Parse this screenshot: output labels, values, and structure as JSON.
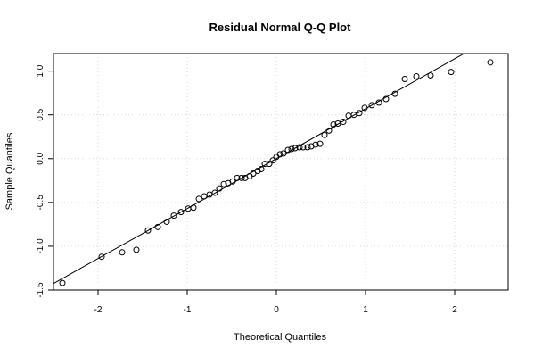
{
  "chart_data": {
    "type": "scatter",
    "title": "Residual Normal Q-Q Plot",
    "xlabel": "Theoretical Quantiles",
    "ylabel": "Sample Quantiles",
    "xlim": [
      -2.5,
      2.6
    ],
    "ylim": [
      -1.5,
      1.2
    ],
    "xticks": [
      -2,
      -1,
      0,
      1,
      2
    ],
    "yticks": [
      -1.5,
      -1.0,
      -0.5,
      0.0,
      0.5,
      1.0
    ],
    "xtick_labels": [
      "-2",
      "-1",
      "0",
      "1",
      "2"
    ],
    "ytick_labels": [
      "-1.5",
      "-1.0",
      "-0.5",
      "0.0",
      "0.5",
      "1.0"
    ],
    "grid": true,
    "reference_line": {
      "slope": 0.57,
      "intercept": -0.0
    },
    "x": [
      -2.4,
      -1.96,
      -1.73,
      -1.57,
      -1.44,
      -1.33,
      -1.23,
      -1.15,
      -1.07,
      -0.99,
      -0.93,
      -0.87,
      -0.81,
      -0.75,
      -0.69,
      -0.64,
      -0.59,
      -0.54,
      -0.49,
      -0.44,
      -0.39,
      -0.35,
      -0.3,
      -0.26,
      -0.21,
      -0.17,
      -0.13,
      -0.08,
      -0.04,
      0.0,
      0.04,
      0.08,
      0.13,
      0.17,
      0.21,
      0.26,
      0.3,
      0.35,
      0.39,
      0.44,
      0.49,
      0.54,
      0.59,
      0.64,
      0.69,
      0.75,
      0.81,
      0.87,
      0.93,
      0.99,
      1.07,
      1.15,
      1.23,
      1.33,
      1.44,
      1.57,
      1.73,
      1.96,
      2.4
    ],
    "y": [
      -1.42,
      -1.12,
      -1.07,
      -1.04,
      -0.82,
      -0.78,
      -0.72,
      -0.65,
      -0.61,
      -0.57,
      -0.56,
      -0.46,
      -0.43,
      -0.41,
      -0.39,
      -0.34,
      -0.29,
      -0.28,
      -0.26,
      -0.22,
      -0.22,
      -0.22,
      -0.2,
      -0.17,
      -0.14,
      -0.12,
      -0.06,
      -0.06,
      -0.02,
      0.02,
      0.05,
      0.06,
      0.1,
      0.11,
      0.12,
      0.13,
      0.13,
      0.13,
      0.14,
      0.16,
      0.17,
      0.27,
      0.32,
      0.39,
      0.4,
      0.42,
      0.49,
      0.5,
      0.52,
      0.58,
      0.61,
      0.64,
      0.68,
      0.74,
      0.91,
      0.94,
      0.95,
      0.99,
      1.1
    ]
  }
}
